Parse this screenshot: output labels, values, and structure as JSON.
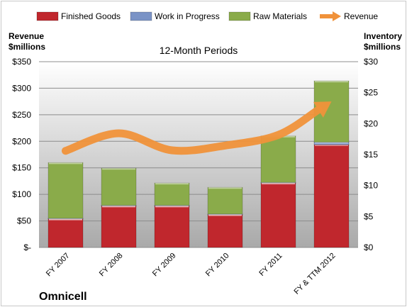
{
  "company": "Omnicell",
  "chart_data": {
    "type": "bar",
    "stacked": true,
    "title": "12-Month Periods",
    "ylabel_left": [
      "Revenue",
      "$millions"
    ],
    "ylabel_right": [
      "Inventory",
      "$millions"
    ],
    "categories": [
      "FY 2007",
      "FY 2008",
      "FY 2009",
      "FY 2010",
      "FY 2011",
      "FY & TTM 2012"
    ],
    "yleft_ticks": [
      "$-",
      "$50",
      "$100",
      "$150",
      "$200",
      "$250",
      "$300",
      "$350"
    ],
    "yright_ticks": [
      "$0",
      "$5",
      "$10",
      "$15",
      "$20",
      "$25",
      "$30"
    ],
    "ylim_left": [
      0,
      350
    ],
    "ylim_right": [
      0,
      30
    ],
    "legend_position": "top",
    "series": [
      {
        "name": "Finished Goods",
        "axis": "right",
        "color": "#c0272d",
        "values": [
          4.6,
          6.7,
          6.7,
          5.3,
          10.4,
          16.6
        ]
      },
      {
        "name": "Work in Progress",
        "axis": "right",
        "color": "#7a93c6",
        "values": [
          0.1,
          0.1,
          0.1,
          0.1,
          0.1,
          0.4
        ]
      },
      {
        "name": "Raw Materials",
        "axis": "right",
        "color": "#8aab4a",
        "values": [
          9.0,
          6.0,
          3.6,
          4.3,
          7.5,
          9.9
        ]
      },
      {
        "name": "Revenue",
        "axis": "left",
        "type": "line",
        "color": "#f0923a",
        "values": [
          182,
          215,
          183,
          192,
          212,
          275
        ]
      }
    ]
  }
}
